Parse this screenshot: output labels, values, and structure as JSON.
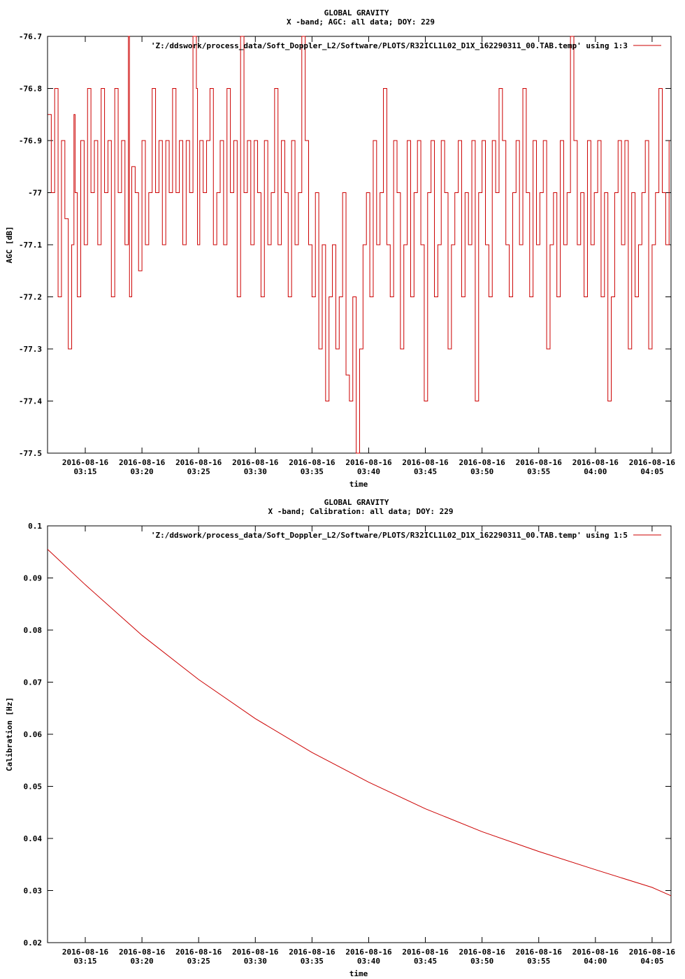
{
  "chart_data": [
    {
      "type": "line",
      "title": "GLOBAL GRAVITY",
      "subtitle": "X -band; AGC: all data; DOY: 229",
      "xlabel": "time",
      "ylabel": "AGC [dB]",
      "ylim": [
        -77.5,
        -76.7
      ],
      "yticks": [
        -76.7,
        -76.8,
        -76.9,
        -77,
        -77.1,
        -77.2,
        -77.3,
        -77.4,
        -77.5
      ],
      "ytick_labels": [
        "-76.7",
        "-76.8",
        "-76.9",
        "-77",
        "-77.1",
        "-77.2",
        "-77.3",
        "-77.4",
        "-77.5"
      ],
      "xlim_min": [
        11.67,
        66.67
      ],
      "xticks_min": [
        15,
        20,
        25,
        30,
        35,
        40,
        45,
        50,
        55,
        60,
        65
      ],
      "xtick_dates": [
        "2016-08-16",
        "2016-08-16",
        "2016-08-16",
        "2016-08-16",
        "2016-08-16",
        "2016-08-16",
        "2016-08-16",
        "2016-08-16",
        "2016-08-16",
        "2016-08-16",
        "2016-08-16"
      ],
      "xtick_times": [
        "03:15",
        "03:20",
        "03:25",
        "03:30",
        "03:35",
        "03:40",
        "03:45",
        "03:50",
        "03:55",
        "04:00",
        "04:05"
      ],
      "grid": false,
      "legend_position": "top-right",
      "series": [
        {
          "name": "'Z:/ddswork/process_data/Soft_Doppler_L2/Software/PLOTS/R32ICL1L02_D1X_162290311_00.TAB.temp' using 1:3",
          "color": "#cc0000",
          "x_min": [
            11.7,
            12.0,
            12.3,
            12.6,
            12.9,
            13.2,
            13.5,
            13.8,
            14.0,
            14.1,
            14.3,
            14.6,
            14.9,
            15.2,
            15.5,
            15.8,
            16.1,
            16.4,
            16.7,
            17.0,
            17.3,
            17.6,
            17.9,
            18.2,
            18.5,
            18.8,
            18.9,
            19.1,
            19.4,
            19.7,
            20.0,
            20.3,
            20.6,
            20.9,
            21.2,
            21.5,
            21.8,
            22.1,
            22.4,
            22.7,
            23.0,
            23.3,
            23.6,
            23.9,
            24.2,
            24.5,
            24.8,
            24.9,
            25.1,
            25.4,
            25.7,
            26.0,
            26.3,
            26.6,
            26.9,
            27.2,
            27.5,
            27.8,
            28.1,
            28.4,
            28.7,
            29.0,
            29.3,
            29.6,
            29.9,
            30.2,
            30.5,
            30.8,
            31.1,
            31.4,
            31.7,
            32.0,
            32.3,
            32.6,
            32.9,
            33.2,
            33.5,
            33.8,
            34.1,
            34.4,
            34.7,
            35.0,
            35.3,
            35.6,
            35.9,
            36.2,
            36.5,
            36.8,
            37.1,
            37.4,
            37.7,
            38.0,
            38.3,
            38.6,
            38.9,
            39.2,
            39.5,
            39.8,
            40.1,
            40.4,
            40.7,
            41.0,
            41.3,
            41.6,
            41.9,
            42.2,
            42.5,
            42.8,
            43.1,
            43.4,
            43.7,
            44.0,
            44.3,
            44.6,
            44.9,
            45.2,
            45.5,
            45.8,
            46.1,
            46.4,
            46.7,
            47.0,
            47.3,
            47.6,
            47.9,
            48.2,
            48.5,
            48.8,
            49.1,
            49.4,
            49.7,
            50.0,
            50.3,
            50.6,
            50.9,
            51.2,
            51.5,
            51.8,
            52.1,
            52.4,
            52.7,
            53.0,
            53.3,
            53.6,
            53.9,
            54.2,
            54.5,
            54.8,
            55.1,
            55.4,
            55.7,
            56.0,
            56.3,
            56.6,
            56.9,
            57.2,
            57.5,
            57.8,
            58.1,
            58.4,
            58.7,
            59.0,
            59.3,
            59.6,
            59.9,
            60.2,
            60.5,
            60.8,
            61.1,
            61.4,
            61.7,
            62.0,
            62.3,
            62.6,
            62.9,
            63.2,
            63.5,
            63.8,
            64.1,
            64.4,
            64.7,
            65.0,
            65.3,
            65.6,
            65.9,
            66.2,
            66.5
          ],
          "y": [
            -76.85,
            -77.0,
            -76.8,
            -77.2,
            -76.9,
            -77.05,
            -77.3,
            -77.1,
            -76.85,
            -77.0,
            -77.2,
            -76.9,
            -77.1,
            -76.8,
            -77.0,
            -76.9,
            -77.1,
            -76.8,
            -77.0,
            -76.9,
            -77.2,
            -76.8,
            -77.0,
            -76.9,
            -77.1,
            -76.7,
            -77.2,
            -76.95,
            -77.0,
            -77.15,
            -76.9,
            -77.1,
            -77.0,
            -76.8,
            -77.0,
            -76.9,
            -77.1,
            -76.9,
            -77.0,
            -76.8,
            -77.0,
            -76.9,
            -77.1,
            -76.9,
            -77.0,
            -76.7,
            -76.8,
            -77.1,
            -76.9,
            -77.0,
            -76.9,
            -76.8,
            -77.1,
            -77.0,
            -76.9,
            -77.1,
            -76.8,
            -77.0,
            -76.9,
            -77.2,
            -76.7,
            -77.0,
            -76.9,
            -77.1,
            -76.9,
            -77.0,
            -77.2,
            -76.9,
            -77.1,
            -77.0,
            -76.8,
            -77.1,
            -76.9,
            -77.0,
            -77.2,
            -76.9,
            -77.1,
            -77.0,
            -76.7,
            -76.9,
            -77.1,
            -77.2,
            -77.0,
            -77.3,
            -77.1,
            -77.4,
            -77.2,
            -77.1,
            -77.3,
            -77.2,
            -77.0,
            -77.35,
            -77.4,
            -77.2,
            -77.5,
            -77.3,
            -77.1,
            -77.0,
            -77.2,
            -76.9,
            -77.1,
            -77.0,
            -76.8,
            -77.1,
            -77.2,
            -76.9,
            -77.0,
            -77.3,
            -77.1,
            -76.9,
            -77.2,
            -77.0,
            -76.9,
            -77.1,
            -77.4,
            -77.0,
            -76.9,
            -77.2,
            -77.1,
            -76.9,
            -77.0,
            -77.3,
            -77.1,
            -77.0,
            -76.9,
            -77.2,
            -77.0,
            -77.1,
            -76.9,
            -77.4,
            -77.0,
            -76.9,
            -77.1,
            -77.2,
            -76.9,
            -77.0,
            -76.8,
            -76.9,
            -77.1,
            -77.2,
            -77.0,
            -76.9,
            -77.1,
            -76.8,
            -77.0,
            -77.2,
            -76.9,
            -77.1,
            -77.0,
            -76.9,
            -77.3,
            -77.1,
            -77.0,
            -77.2,
            -76.9,
            -77.1,
            -77.0,
            -76.7,
            -76.9,
            -77.1,
            -77.0,
            -77.2,
            -76.9,
            -77.1,
            -77.0,
            -76.9,
            -77.2,
            -77.0,
            -77.4,
            -77.2,
            -77.0,
            -76.9,
            -77.1,
            -76.9,
            -77.3,
            -77.0,
            -77.2,
            -77.1,
            -77.0,
            -76.9,
            -77.3,
            -77.1,
            -77.0,
            -76.8,
            -77.0,
            -77.1,
            -76.9
          ]
        }
      ]
    },
    {
      "type": "line",
      "title": "GLOBAL GRAVITY",
      "subtitle": "X -band; Calibration: all data; DOY: 229",
      "xlabel": "time",
      "ylabel": "Calibration [Hz]",
      "ylim": [
        0.02,
        0.1
      ],
      "yticks": [
        0.1,
        0.09,
        0.08,
        0.07,
        0.06,
        0.05,
        0.04,
        0.03,
        0.02
      ],
      "ytick_labels": [
        "0.1",
        "0.09",
        "0.08",
        "0.07",
        "0.06",
        "0.05",
        "0.04",
        "0.03",
        "0.02"
      ],
      "xlim_min": [
        11.67,
        66.67
      ],
      "xticks_min": [
        15,
        20,
        25,
        30,
        35,
        40,
        45,
        50,
        55,
        60,
        65
      ],
      "xtick_dates": [
        "2016-08-16",
        "2016-08-16",
        "2016-08-16",
        "2016-08-16",
        "2016-08-16",
        "2016-08-16",
        "2016-08-16",
        "2016-08-16",
        "2016-08-16",
        "2016-08-16",
        "2016-08-16"
      ],
      "xtick_times": [
        "03:15",
        "03:20",
        "03:25",
        "03:30",
        "03:35",
        "03:40",
        "03:45",
        "03:50",
        "03:55",
        "04:00",
        "04:05"
      ],
      "grid": false,
      "legend_position": "top-right",
      "series": [
        {
          "name": "'Z:/ddswork/process_data/Soft_Doppler_L2/Software/PLOTS/R32ICL1L02_D1X_162290311_00.TAB.temp' using 1:5",
          "color": "#cc0000",
          "x_min": [
            11.67,
            15,
            20,
            25,
            30,
            35,
            40,
            45,
            50,
            55,
            60,
            65,
            66.67
          ],
          "y": [
            0.0955,
            0.0887,
            0.079,
            0.0705,
            0.063,
            0.0565,
            0.0508,
            0.0457,
            0.0413,
            0.0375,
            0.034,
            0.0306,
            0.029
          ]
        }
      ]
    }
  ]
}
